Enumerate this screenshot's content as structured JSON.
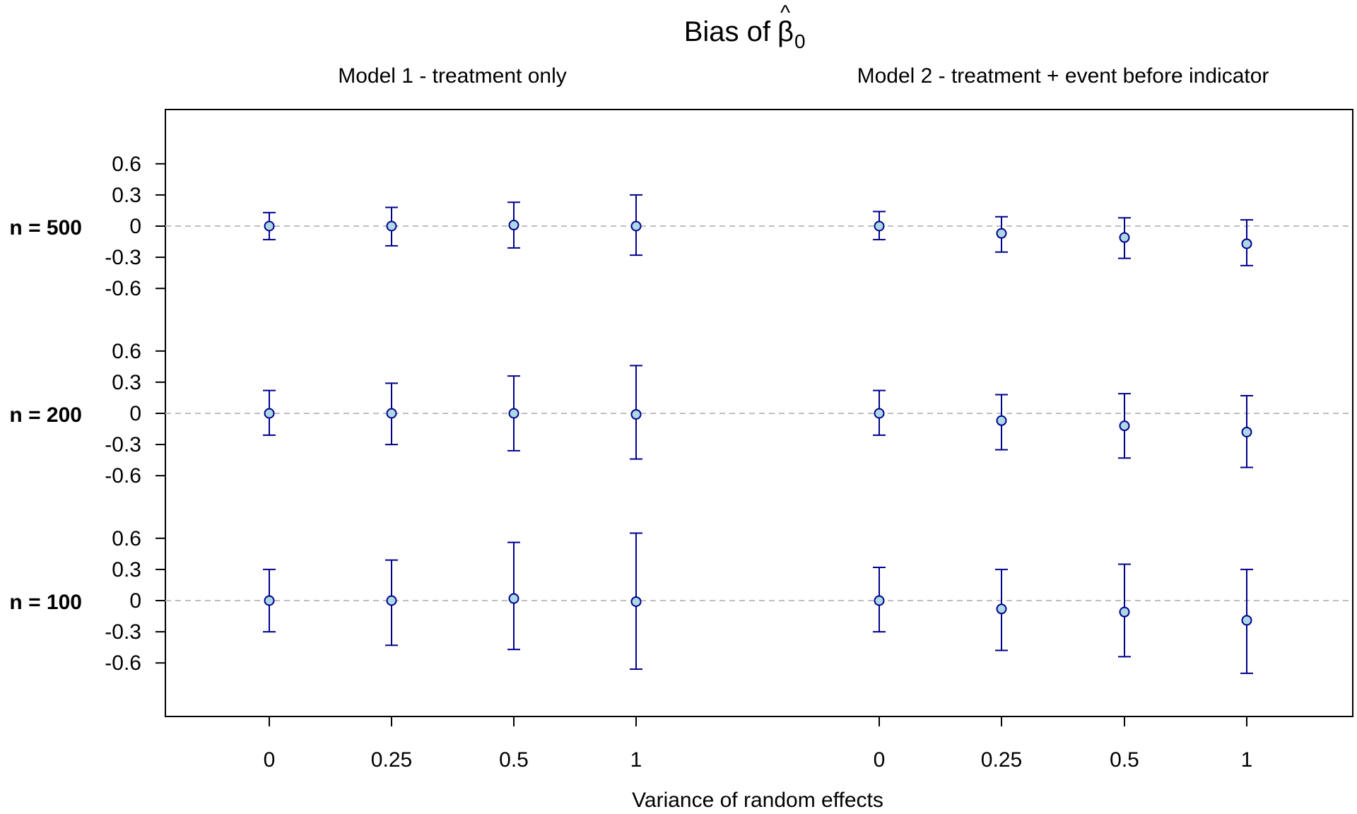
{
  "chart_data": {
    "type": "errorbar",
    "title": {
      "prefix": "Bias of",
      "symbol": "β",
      "hat": "^",
      "subscript": "0"
    },
    "panels": [
      "Model 1 - treatment only",
      "Model 2 - treatment + event before indicator"
    ],
    "xlabel": "Variance of random effects",
    "categories": [
      "0",
      "0.25",
      "0.5",
      "1"
    ],
    "rows": [
      "n = 500",
      "n = 200",
      "n = 100"
    ],
    "yticks": [
      0.6,
      0.3,
      0,
      -0.3,
      -0.6
    ],
    "ytick_labels": [
      "0.6",
      "0.3",
      "0",
      "-0.3",
      "-0.6"
    ],
    "ylim": [
      -0.9,
      0.9
    ],
    "reference_line": 0,
    "colors": {
      "bar": "#00008b",
      "point_fill": "#add8e6",
      "point_stroke": "#00008b",
      "refline": "#bebebe",
      "frame": "#000000"
    },
    "series": [
      {
        "row": "n = 500",
        "model1": [
          {
            "mean": 0.0,
            "lower": -0.13,
            "upper": 0.13
          },
          {
            "mean": 0.0,
            "lower": -0.19,
            "upper": 0.18
          },
          {
            "mean": 0.01,
            "lower": -0.21,
            "upper": 0.23
          },
          {
            "mean": 0.0,
            "lower": -0.28,
            "upper": 0.3
          }
        ],
        "model2": [
          {
            "mean": 0.0,
            "lower": -0.13,
            "upper": 0.14
          },
          {
            "mean": -0.07,
            "lower": -0.25,
            "upper": 0.09
          },
          {
            "mean": -0.11,
            "lower": -0.31,
            "upper": 0.08
          },
          {
            "mean": -0.17,
            "lower": -0.38,
            "upper": 0.06
          }
        ]
      },
      {
        "row": "n = 200",
        "model1": [
          {
            "mean": 0.0,
            "lower": -0.21,
            "upper": 0.22
          },
          {
            "mean": 0.0,
            "lower": -0.3,
            "upper": 0.29
          },
          {
            "mean": 0.0,
            "lower": -0.36,
            "upper": 0.36
          },
          {
            "mean": -0.01,
            "lower": -0.44,
            "upper": 0.46
          }
        ],
        "model2": [
          {
            "mean": 0.0,
            "lower": -0.21,
            "upper": 0.22
          },
          {
            "mean": -0.07,
            "lower": -0.35,
            "upper": 0.18
          },
          {
            "mean": -0.12,
            "lower": -0.43,
            "upper": 0.19
          },
          {
            "mean": -0.18,
            "lower": -0.52,
            "upper": 0.17
          }
        ]
      },
      {
        "row": "n = 100",
        "model1": [
          {
            "mean": 0.0,
            "lower": -0.3,
            "upper": 0.3
          },
          {
            "mean": 0.0,
            "lower": -0.43,
            "upper": 0.39
          },
          {
            "mean": 0.02,
            "lower": -0.47,
            "upper": 0.56
          },
          {
            "mean": -0.01,
            "lower": -0.66,
            "upper": 0.65
          }
        ],
        "model2": [
          {
            "mean": 0.0,
            "lower": -0.3,
            "upper": 0.32
          },
          {
            "mean": -0.08,
            "lower": -0.48,
            "upper": 0.3
          },
          {
            "mean": -0.11,
            "lower": -0.54,
            "upper": 0.35
          },
          {
            "mean": -0.19,
            "lower": -0.7,
            "upper": 0.3
          }
        ]
      }
    ]
  }
}
